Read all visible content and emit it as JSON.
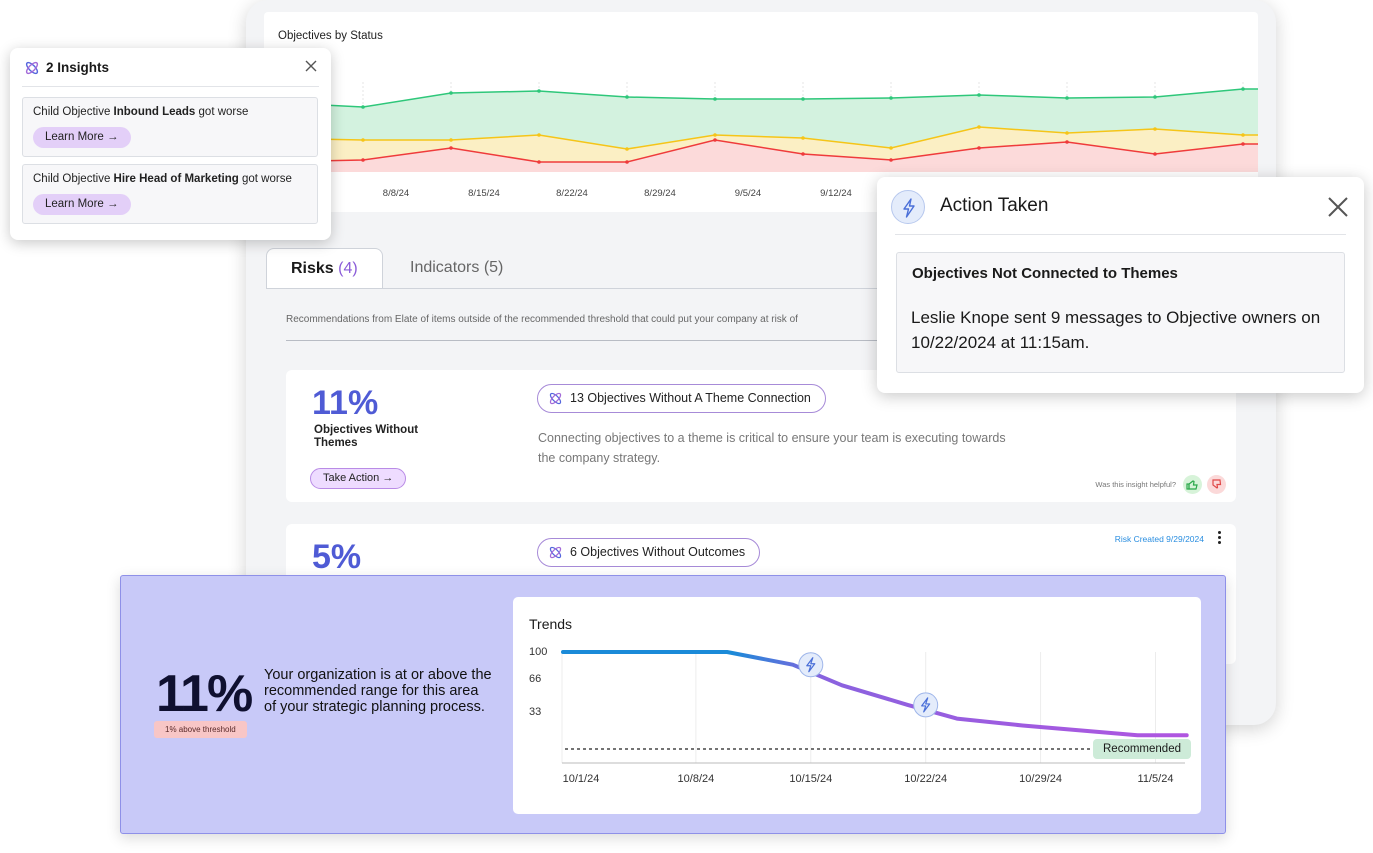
{
  "status_chart": {
    "title": "Objectives by Status",
    "x_labels": [
      "8/8/24",
      "8/15/24",
      "8/22/24",
      "8/29/24",
      "9/5/24",
      "9/12/24"
    ],
    "colors": {
      "green": "#2ec77a",
      "yellow": "#f5c518",
      "red": "#ef3b3b"
    }
  },
  "tabs": [
    {
      "label": "Risks",
      "count": "(4)"
    },
    {
      "label": "Indicators (5)"
    }
  ],
  "recommendations_text": "Recommendations from Elate of items outside of the recommended threshold that could put your company at risk of",
  "risks": [
    {
      "percent": "11%",
      "label": "Objectives Without Themes",
      "action": "Take Action →",
      "pill": "13 Objectives Without A Theme Connection",
      "description": "Connecting objectives to a theme is critical to ensure your team is executing towards the company strategy.",
      "helpful": "Was this insight helpful?"
    },
    {
      "percent": "5%",
      "pill": "6 Objectives Without Outcomes",
      "created": "Risk Created 9/29/2024"
    }
  ],
  "insights": {
    "title": "2 Insights",
    "items": [
      {
        "prefix": "Child Objective ",
        "name": "Inbound Leads",
        "suffix": " got worse",
        "button": "Learn More →"
      },
      {
        "prefix": "Child Objective ",
        "name": "Hire Head of Marketing",
        "suffix": " got worse",
        "button": "Learn More →"
      }
    ]
  },
  "action_taken": {
    "title": "Action Taken",
    "box_title": "Objectives Not Connected to Themes",
    "box_text": "Leslie Knope sent 9 messages to Objective owners on 10/22/2024 at 11:15am."
  },
  "banner": {
    "percent": "11%",
    "badge": "1% above threshold",
    "text": "Your organization is at or above the recommended range for this area of your strategic planning process."
  },
  "chart_data": {
    "type": "line",
    "title": "Trends",
    "x": [
      "10/1/24",
      "10/8/24",
      "10/15/24",
      "10/22/24",
      "10/29/24",
      "11/5/24"
    ],
    "y_ticks": [
      100,
      66,
      33
    ],
    "ylim": [
      0,
      100
    ],
    "series": [
      {
        "points": [
          [
            "10/1/24",
            100
          ],
          [
            "10/8/24",
            100
          ],
          [
            "10/11/24",
            100
          ],
          [
            "10/15/24",
            87
          ],
          [
            "10/18/24",
            66
          ],
          [
            "10/22/24",
            46
          ],
          [
            "10/25/24",
            32
          ],
          [
            "10/29/24",
            25
          ],
          [
            "11/5/24",
            15
          ],
          [
            "11/8/24",
            15
          ]
        ]
      }
    ],
    "recommended_label": "Recommended",
    "recommended_value": 0,
    "action_markers": [
      "10/15/24",
      "10/22/24"
    ]
  }
}
